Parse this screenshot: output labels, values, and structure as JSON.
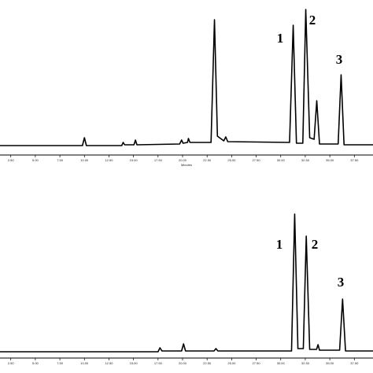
{
  "chart_data": [
    {
      "type": "line",
      "color": "#000000",
      "x_label": "Minutes",
      "xlim": [
        1.4,
        39.4
      ],
      "ylim": [
        0,
        180
      ],
      "xticks": [
        {
          "value": 2.5,
          "label": "2.50"
        },
        {
          "value": 5,
          "label": "5.00"
        },
        {
          "value": 7.5,
          "label": "7.50"
        },
        {
          "value": 10,
          "label": "10.00"
        },
        {
          "value": 12.5,
          "label": "12.50"
        },
        {
          "value": 15,
          "label": "15.00"
        },
        {
          "value": 17.5,
          "label": "17.50"
        },
        {
          "value": 20,
          "label": "20.00"
        },
        {
          "value": 22.5,
          "label": "22.50"
        },
        {
          "value": 25,
          "label": "25.00"
        },
        {
          "value": 27.5,
          "label": "27.50"
        },
        {
          "value": 30,
          "label": "30.00"
        },
        {
          "value": 32.5,
          "label": "32.50"
        },
        {
          "value": 35,
          "label": "35.00"
        },
        {
          "value": 37.5,
          "label": "37.50"
        }
      ],
      "x": [
        1.4,
        9.8,
        10.0,
        10.2,
        13.8,
        13.95,
        14.1,
        15.05,
        15.2,
        15.35,
        19.7,
        19.9,
        20.05,
        20.5,
        20.6,
        20.75,
        22.9,
        23.25,
        23.55,
        24.2,
        24.4,
        24.6,
        30.9,
        31.27,
        31.6,
        32.25,
        32.55,
        32.95,
        33.4,
        33.67,
        33.95,
        35.85,
        36.15,
        36.45,
        39.4
      ],
      "values": [
        0,
        0,
        10,
        0,
        0,
        4,
        1,
        1,
        7,
        1,
        2,
        7,
        3,
        4,
        9,
        4,
        4,
        160,
        12,
        6,
        11,
        5,
        4,
        153,
        3,
        3,
        173,
        10,
        8,
        57,
        2,
        2,
        90,
        1,
        1
      ],
      "peak_labels": [
        "1",
        "2",
        "3"
      ]
    },
    {
      "type": "line",
      "color": "#000000",
      "xlim": [
        1.4,
        39.4
      ],
      "ylim": [
        0,
        180
      ],
      "xticks": [
        {
          "value": 2.5,
          "label": "2.50"
        },
        {
          "value": 5,
          "label": "5.00"
        },
        {
          "value": 7.5,
          "label": "7.50"
        },
        {
          "value": 10,
          "label": "10.00"
        },
        {
          "value": 12.5,
          "label": "12.50"
        },
        {
          "value": 15,
          "label": "15.00"
        },
        {
          "value": 17.5,
          "label": "17.50"
        },
        {
          "value": 20,
          "label": "20.00"
        },
        {
          "value": 22.5,
          "label": "22.50"
        },
        {
          "value": 25,
          "label": "25.00"
        },
        {
          "value": 27.5,
          "label": "27.50"
        },
        {
          "value": 30,
          "label": "30.00"
        },
        {
          "value": 32.5,
          "label": "32.50"
        },
        {
          "value": 35,
          "label": "35.00"
        },
        {
          "value": 37.5,
          "label": "37.50"
        }
      ],
      "x": [
        1.4,
        17.5,
        17.7,
        17.9,
        19.9,
        20.1,
        20.3,
        23.2,
        23.4,
        23.6,
        31.1,
        31.42,
        31.75,
        32.3,
        32.6,
        32.95,
        33.65,
        33.8,
        33.95,
        36.0,
        36.3,
        36.6,
        39.4
      ],
      "values": [
        0,
        0,
        5,
        1,
        1,
        10,
        1,
        1,
        4,
        1,
        1,
        175,
        4,
        4,
        147,
        3,
        3,
        9,
        2,
        2,
        67,
        1,
        1
      ],
      "peak_labels": [
        "1",
        "2",
        "3"
      ]
    }
  ]
}
